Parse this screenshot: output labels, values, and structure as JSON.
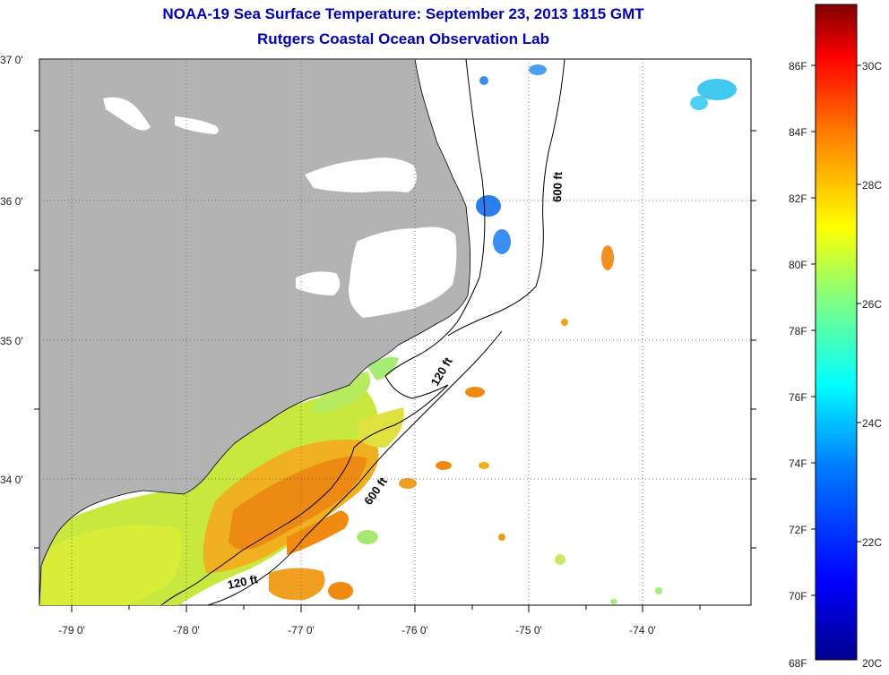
{
  "title": "NOAA-19 Sea Surface Temperature:  September 23, 2013 1815 GMT",
  "subtitle": "Rutgers Coastal Ocean Observation Lab",
  "map": {
    "lat_labels": [
      "37 0'",
      "36 0'",
      "35 0'",
      "34 0'"
    ],
    "lon_labels": [
      "-79 0'",
      "-78 0'",
      "-77 0'",
      "-76 0'",
      "-75 0'",
      "-74 0'"
    ],
    "depth_labels": [
      "600 ft",
      "120 ft",
      "600 ft",
      "120 ft"
    ],
    "land_color": "#b3b3b3",
    "ocean_color": "#ffffff",
    "grid": "dotted"
  },
  "colorbar": {
    "fahrenheit_labels": [
      "86F",
      "84F",
      "82F",
      "80F",
      "78F",
      "76F",
      "74F",
      "72F",
      "70F",
      "68F"
    ],
    "celsius_labels": [
      "30C",
      "28C",
      "26C",
      "24C",
      "22C",
      "20C"
    ],
    "range_f": [
      68,
      88
    ],
    "colors": [
      "#00008f",
      "#0000ff",
      "#0080ff",
      "#00ffff",
      "#80ff80",
      "#ffff00",
      "#ff8000",
      "#ff0000",
      "#800000"
    ]
  }
}
